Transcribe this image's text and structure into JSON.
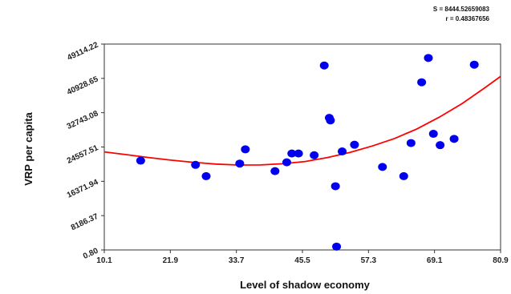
{
  "chart_data": {
    "type": "scatter",
    "xlabel": "Level of shadow  economy",
    "ylabel": "VRP per capita",
    "xlim": [
      10.1,
      80.9
    ],
    "ylim": [
      0.8,
      49114.22
    ],
    "x_ticks": [
      "10.1",
      "21.9",
      "33.7",
      "45.5",
      "57.3",
      "69.1",
      "80.9"
    ],
    "y_ticks": [
      "0.80",
      "8186.37",
      "16371.94",
      "24557.51",
      "32743.08",
      "40928.65",
      "49114.22"
    ],
    "annotations": [
      "S = 8444.52659083",
      "r = 0.48367656"
    ],
    "grid": false,
    "series": [
      {
        "kind": "points",
        "color": "#0000ee",
        "points": [
          [
            16.6,
            21300
          ],
          [
            26.4,
            20300
          ],
          [
            28.3,
            17600
          ],
          [
            34.3,
            20600
          ],
          [
            35.3,
            24000
          ],
          [
            40.6,
            18800
          ],
          [
            42.7,
            20900
          ],
          [
            43.6,
            23000
          ],
          [
            44.8,
            23000
          ],
          [
            47.6,
            22600
          ],
          [
            49.4,
            44000
          ],
          [
            50.3,
            31500
          ],
          [
            50.5,
            30900
          ],
          [
            51.4,
            15200
          ],
          [
            51.6,
            800
          ],
          [
            52.6,
            23500
          ],
          [
            54.8,
            25100
          ],
          [
            59.8,
            19800
          ],
          [
            63.6,
            17600
          ],
          [
            64.9,
            25500
          ],
          [
            66.8,
            40000
          ],
          [
            68.0,
            45800
          ],
          [
            68.9,
            27700
          ],
          [
            70.1,
            25000
          ],
          [
            72.6,
            26500
          ],
          [
            76.2,
            44200
          ]
        ]
      },
      {
        "kind": "fit-curve",
        "color": "#ff0000",
        "x": [
          10.1,
          14,
          18,
          22,
          26,
          30,
          34,
          38,
          42,
          46,
          50,
          54,
          58,
          62,
          66,
          70,
          74,
          78,
          80.9
        ],
        "y": [
          23400,
          22750,
          22050,
          21420,
          20900,
          20480,
          20250,
          20270,
          20570,
          21100,
          22050,
          23250,
          24800,
          26600,
          28900,
          31700,
          34900,
          38600,
          41400
        ]
      }
    ]
  }
}
